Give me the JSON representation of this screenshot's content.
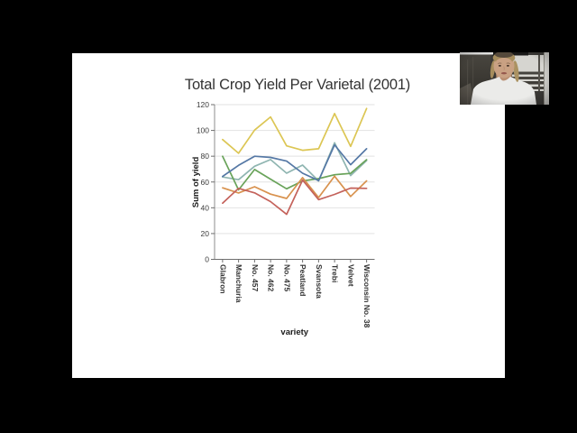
{
  "slide": {
    "title": "Total Crop Yield Per Varietal (2001)"
  },
  "chart_data": {
    "type": "line",
    "title": "Total Crop Yield Per Varietal (2001)",
    "xlabel": "variety",
    "ylabel": "Sum of yield",
    "ylim": [
      0,
      120
    ],
    "yticks": [
      0,
      20,
      40,
      60,
      80,
      100,
      120
    ],
    "grid": true,
    "legend_position": "none",
    "x_tick_rotation": 90,
    "categories": [
      "Glabron",
      "Manchuria",
      "No. 457",
      "No. 462",
      "No. 475",
      "Peatland",
      "Svansota",
      "Trebi",
      "Velvet",
      "Wisconsin No. 38"
    ],
    "series": [
      {
        "name": "yellow-line",
        "color": "#dcc654",
        "values": [
          92.9,
          82.3,
          100.3,
          110.5,
          88.0,
          84.6,
          85.8,
          113.1,
          87.6,
          117.0
        ]
      },
      {
        "name": "teal-line",
        "color": "#8fb5b1",
        "values": [
          63.9,
          61.8,
          72.2,
          77.4,
          66.8,
          73.1,
          60.8,
          90.4,
          65.0,
          76.6
        ]
      },
      {
        "name": "green-line",
        "color": "#69a35a",
        "values": [
          79.9,
          53.9,
          69.7,
          62.2,
          54.7,
          60.8,
          62.6,
          65.6,
          66.7,
          77.3
        ]
      },
      {
        "name": "blue-line",
        "color": "#5578a5",
        "values": [
          64.3,
          72.9,
          80.0,
          79.1,
          76.2,
          66.8,
          61.1,
          88.8,
          73.4,
          85.8
        ]
      },
      {
        "name": "orange-line",
        "color": "#d8924e",
        "values": [
          55.5,
          51.5,
          56.3,
          50.6,
          47.2,
          63.4,
          47.9,
          64.5,
          48.8,
          60.9
        ]
      },
      {
        "name": "red-line",
        "color": "#c4625b",
        "values": [
          43.6,
          55.1,
          51.6,
          44.8,
          34.9,
          61.5,
          46.3,
          50.4,
          55.3,
          55.1
        ]
      }
    ],
    "axis_colors": {
      "axis_line": "#8c8c8c",
      "grid_line": "#e2e2e2",
      "tick_text": "#3c3c3c"
    }
  }
}
